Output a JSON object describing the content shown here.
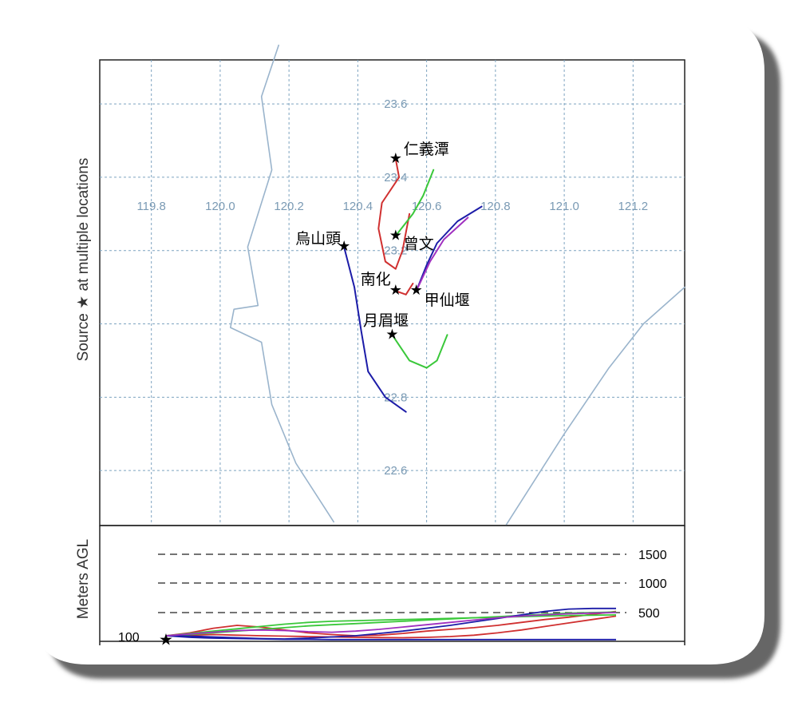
{
  "chart_data": [
    {
      "type": "line",
      "subtype": "map-trajectories",
      "y_axis_title": "Source ★ at multiple locations",
      "xlim": [
        119.65,
        121.35
      ],
      "ylim": [
        22.45,
        23.72
      ],
      "longitude_ticks": [
        "119.8",
        "120.0",
        "120.2",
        "120.4",
        "120.6",
        "120.8",
        "121.0",
        "121.2"
      ],
      "latitude_ticks": [
        "23.6",
        "23.4",
        "23.2",
        "22.8",
        "22.6"
      ],
      "grid": true,
      "sources": [
        {
          "label": "仁義潭",
          "lon": 120.51,
          "lat": 23.45
        },
        {
          "label": "曾文",
          "lon": 120.51,
          "lat": 23.24
        },
        {
          "label": "烏山頭",
          "lon": 120.36,
          "lat": 23.21
        },
        {
          "label": "南化",
          "lon": 120.51,
          "lat": 23.09
        },
        {
          "label": "甲仙堰",
          "lon": 120.57,
          "lat": 23.09
        },
        {
          "label": "月眉堰",
          "lon": 120.5,
          "lat": 22.97
        }
      ],
      "coastline": [
        [
          120.17,
          23.76
        ],
        [
          120.12,
          23.62
        ],
        [
          120.15,
          23.42
        ],
        [
          120.08,
          23.21
        ],
        [
          120.11,
          23.05
        ],
        [
          120.04,
          23.04
        ],
        [
          120.03,
          22.99
        ],
        [
          120.12,
          22.95
        ],
        [
          120.15,
          22.78
        ],
        [
          120.22,
          22.62
        ],
        [
          120.33,
          22.46
        ]
      ],
      "coastline_east": [
        [
          120.83,
          22.45
        ],
        [
          121.0,
          22.7
        ],
        [
          121.13,
          22.88
        ],
        [
          121.23,
          23.0
        ],
        [
          121.35,
          23.1
        ]
      ],
      "series": [
        {
          "color": "#d03030",
          "points": [
            [
              120.51,
              23.45
            ],
            [
              120.52,
              23.4
            ],
            [
              120.47,
              23.33
            ],
            [
              120.46,
              23.26
            ],
            [
              120.48,
              23.17
            ],
            [
              120.51,
              23.15
            ],
            [
              120.53,
              23.2
            ],
            [
              120.55,
              23.3
            ]
          ]
        },
        {
          "color": "#3ac83a",
          "points": [
            [
              120.51,
              23.24
            ],
            [
              120.56,
              23.3
            ],
            [
              120.59,
              23.35
            ],
            [
              120.62,
              23.42
            ]
          ]
        },
        {
          "color": "#1c1ca8",
          "points": [
            [
              120.36,
              23.21
            ],
            [
              120.39,
              23.1
            ],
            [
              120.41,
              22.98
            ],
            [
              120.43,
              22.87
            ],
            [
              120.48,
              22.8
            ],
            [
              120.54,
              22.76
            ]
          ]
        },
        {
          "color": "#d03030",
          "points": [
            [
              120.51,
              23.09
            ],
            [
              120.54,
              23.08
            ],
            [
              120.56,
              23.11
            ]
          ]
        },
        {
          "color": "#1c1ca8",
          "points": [
            [
              120.57,
              23.09
            ],
            [
              120.6,
              23.16
            ],
            [
              120.63,
              23.22
            ],
            [
              120.69,
              23.28
            ],
            [
              120.76,
              23.32
            ]
          ]
        },
        {
          "color": "#a030c0",
          "points": [
            [
              120.57,
              23.09
            ],
            [
              120.61,
              23.17
            ],
            [
              120.65,
              23.23
            ],
            [
              120.72,
              23.29
            ]
          ]
        },
        {
          "color": "#3ac83a",
          "points": [
            [
              120.5,
              22.97
            ],
            [
              120.55,
              22.9
            ],
            [
              120.6,
              22.88
            ],
            [
              120.63,
              22.9
            ],
            [
              120.66,
              22.97
            ]
          ]
        }
      ]
    },
    {
      "type": "line",
      "subtype": "height-profile",
      "y_axis_title": "Meters AGL",
      "height_levels": [
        {
          "label": "1500",
          "value": 1500
        },
        {
          "label": "1000",
          "value": 1000
        },
        {
          "label": "500",
          "value": 500
        }
      ],
      "base_label": "100",
      "ylim": [
        0,
        1800
      ],
      "x_steps": 24,
      "series": [
        {
          "color": "#d03030",
          "values": [
            100,
            150,
            230,
            280,
            250,
            200,
            150,
            120,
            100,
            110,
            140,
            180,
            210,
            240,
            280,
            330,
            380,
            420,
            470,
            520
          ]
        },
        {
          "color": "#d03030",
          "values": [
            100,
            110,
            120,
            110,
            100,
            90,
            80,
            70,
            60,
            55,
            50,
            60,
            80,
            110,
            150,
            200,
            260,
            320,
            380,
            440
          ]
        },
        {
          "color": "#3ac83a",
          "values": [
            100,
            140,
            180,
            220,
            260,
            300,
            330,
            350,
            360,
            370,
            380,
            390,
            400,
            410,
            420,
            430,
            440,
            450,
            455,
            460
          ]
        },
        {
          "color": "#3ac83a",
          "values": [
            100,
            120,
            150,
            180,
            210,
            240,
            270,
            290,
            310,
            330,
            350,
            370,
            390,
            410,
            430,
            450,
            470,
            490,
            500,
            510
          ]
        },
        {
          "color": "#1c1ca8",
          "values": [
            100,
            90,
            70,
            50,
            30,
            20,
            40,
            70,
            100,
            140,
            180,
            230,
            280,
            340,
            400,
            460,
            520,
            560,
            570,
            570
          ]
        },
        {
          "color": "#1c1ca8",
          "values": [
            100,
            60,
            40,
            30,
            20,
            10,
            10,
            5,
            5,
            5,
            5,
            5,
            5,
            5,
            5,
            5,
            5,
            5,
            5,
            5
          ]
        },
        {
          "color": "#a030c0",
          "values": [
            100,
            130,
            160,
            190,
            200,
            190,
            170,
            160,
            180,
            210,
            250,
            290,
            330,
            370,
            410,
            440,
            460,
            480,
            490,
            500
          ]
        }
      ]
    }
  ]
}
